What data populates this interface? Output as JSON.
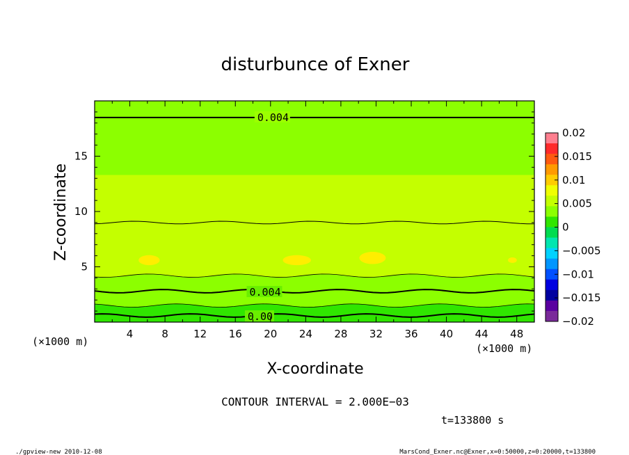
{
  "chart_data": {
    "type": "heatmap",
    "title": "disturbunce of Exner",
    "xlabel": "X-coordinate",
    "ylabel": "Z-coordinate",
    "x_unit_label_left": "(×1000 m)",
    "x_unit_label_right": "(×1000 m)",
    "xlim": [
      0,
      50
    ],
    "ylim": [
      0,
      20
    ],
    "x_ticks": [
      4,
      8,
      12,
      16,
      20,
      24,
      28,
      32,
      36,
      40,
      44,
      48
    ],
    "y_ticks": [
      5,
      10,
      15
    ],
    "contour_labels": [
      {
        "text": "0.004",
        "x": 18.5,
        "y": 18.5
      },
      {
        "text": "0.004",
        "x": 17.6,
        "y": 2.7
      },
      {
        "text": "0.00",
        "x": 17.4,
        "y": 0.5
      }
    ],
    "bands": [
      {
        "z0": 0.0,
        "z1": 0.6,
        "value": 0.001
      },
      {
        "z0": 0.6,
        "z1": 1.5,
        "value": 0.002
      },
      {
        "z0": 1.5,
        "z1": 2.8,
        "value": 0.003
      },
      {
        "z0": 2.8,
        "z1": 4.2,
        "value": 0.004
      },
      {
        "z0": 4.2,
        "z1": 9.0,
        "value": 0.0055
      },
      {
        "z0": 9.0,
        "z1": 13.3,
        "value": 0.0045
      },
      {
        "z0": 13.3,
        "z1": 18.5,
        "value": 0.004
      },
      {
        "z0": 18.5,
        "z1": 20.0,
        "value": 0.0035
      }
    ],
    "colorbar": {
      "ticks": [
        "0.02",
        "0.015",
        "0.01",
        "0.005",
        "0",
        "−0.005",
        "−0.01",
        "−0.015",
        "−0.02"
      ],
      "range": [
        -0.02,
        0.02
      ],
      "colors": [
        "#ff7f8f",
        "#ff2a2a",
        "#ff5a10",
        "#ff9a00",
        "#ffcc00",
        "#f0ff00",
        "#c4ff00",
        "#8cff00",
        "#30e600",
        "#00dc50",
        "#00e6b0",
        "#00d2ff",
        "#0096ff",
        "#0050ff",
        "#0000e0",
        "#0000a0",
        "#5a00a0",
        "#7a2a9a"
      ]
    }
  },
  "contour_interval": "CONTOUR INTERVAL = 2.000E−03",
  "time_label": "t=133800 s",
  "footer_left": "./gpview-new  2010-12-08",
  "footer_right": "MarsCond_Exner.nc@Exner,x=0:50000,z=0:20000,t=133800"
}
